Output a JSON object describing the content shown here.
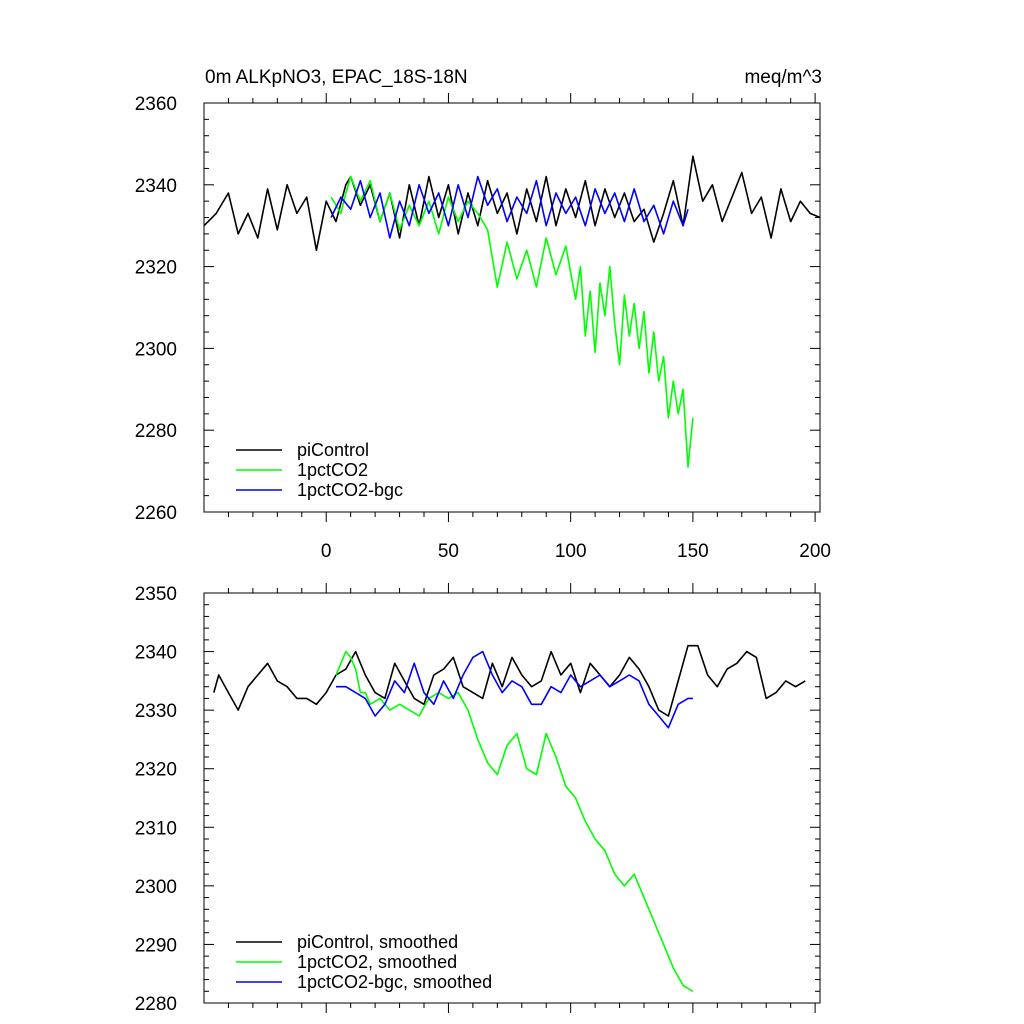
{
  "chart_data": [
    {
      "type": "line",
      "title_left": "0m ALKpNO3, EPAC_18S-18N",
      "title_right": "meq/m^3",
      "xlim": [
        -50,
        202
      ],
      "ylim": [
        2260,
        2360
      ],
      "yticks": [
        2260,
        2280,
        2300,
        2320,
        2340,
        2360
      ],
      "xticks": [
        0,
        50,
        100,
        150,
        200
      ],
      "xtick_labels_shown": true,
      "legend_position": "bottom-left",
      "series": [
        {
          "name": "piControl",
          "color": "#000000",
          "x": [
            -50,
            -45,
            -40,
            -36,
            -32,
            -28,
            -24,
            -20,
            -16,
            -12,
            -8,
            -4,
            0,
            4,
            8,
            10,
            14,
            18,
            22,
            26,
            30,
            34,
            38,
            42,
            46,
            50,
            54,
            58,
            62,
            66,
            70,
            74,
            78,
            82,
            86,
            90,
            94,
            98,
            102,
            106,
            110,
            114,
            118,
            122,
            126,
            130,
            134,
            138,
            142,
            146,
            150,
            154,
            158,
            162,
            166,
            170,
            174,
            178,
            182,
            186,
            190,
            194,
            198,
            202
          ],
          "y": [
            2330,
            2333,
            2338,
            2328,
            2333,
            2327,
            2339,
            2329,
            2340,
            2333,
            2337,
            2324,
            2336,
            2331,
            2340,
            2342,
            2335,
            2340,
            2331,
            2338,
            2327,
            2340,
            2330,
            2342,
            2332,
            2340,
            2328,
            2338,
            2330,
            2341,
            2333,
            2338,
            2328,
            2339,
            2331,
            2342,
            2330,
            2339,
            2332,
            2341,
            2330,
            2339,
            2332,
            2338,
            2331,
            2334,
            2326,
            2333,
            2341,
            2330,
            2347,
            2336,
            2340,
            2331,
            2337,
            2343,
            2333,
            2337,
            2327,
            2339,
            2331,
            2336,
            2333,
            2332
          ]
        },
        {
          "name": "1pctCO2",
          "color": "#00ff00",
          "x": [
            2,
            6,
            8,
            10,
            14,
            18,
            22,
            26,
            30,
            34,
            38,
            42,
            46,
            50,
            54,
            58,
            62,
            66,
            68,
            70,
            74,
            78,
            82,
            86,
            90,
            94,
            98,
            102,
            104,
            106,
            108,
            110,
            112,
            114,
            116,
            118,
            120,
            122,
            124,
            126,
            128,
            130,
            132,
            134,
            136,
            138,
            140,
            142,
            144,
            146,
            148,
            150
          ],
          "y": [
            2337,
            2333,
            2338,
            2342,
            2336,
            2341,
            2331,
            2338,
            2329,
            2335,
            2330,
            2336,
            2328,
            2337,
            2331,
            2336,
            2333,
            2329,
            2322,
            2315,
            2326,
            2317,
            2324,
            2315,
            2327,
            2318,
            2325,
            2312,
            2320,
            2303,
            2314,
            2299,
            2316,
            2308,
            2320,
            2306,
            2296,
            2313,
            2303,
            2311,
            2300,
            2309,
            2294,
            2304,
            2292,
            2298,
            2283,
            2292,
            2284,
            2290,
            2271,
            2283
          ]
        },
        {
          "name": "1pctCO2-bgc",
          "color": "#0000ff",
          "x": [
            2,
            6,
            10,
            14,
            18,
            22,
            26,
            30,
            34,
            38,
            42,
            46,
            50,
            54,
            58,
            62,
            66,
            70,
            74,
            78,
            82,
            86,
            90,
            94,
            98,
            102,
            106,
            110,
            114,
            118,
            122,
            126,
            130,
            134,
            138,
            142,
            146,
            148
          ],
          "y": [
            2332,
            2337,
            2334,
            2341,
            2332,
            2338,
            2327,
            2336,
            2330,
            2340,
            2333,
            2338,
            2330,
            2340,
            2332,
            2342,
            2335,
            2339,
            2331,
            2337,
            2333,
            2341,
            2330,
            2338,
            2333,
            2337,
            2330,
            2339,
            2333,
            2338,
            2331,
            2339,
            2331,
            2335,
            2328,
            2336,
            2330,
            2334
          ]
        }
      ]
    },
    {
      "type": "line",
      "xlim": [
        -50,
        202
      ],
      "ylim": [
        2280,
        2350
      ],
      "yticks": [
        2280,
        2290,
        2300,
        2310,
        2320,
        2330,
        2340,
        2350
      ],
      "xtick_labels_shown": false,
      "legend_position": "bottom-left",
      "series": [
        {
          "name": "piControl, smoothed",
          "color": "#000000",
          "x": [
            -46,
            -44,
            -40,
            -36,
            -32,
            -28,
            -24,
            -20,
            -16,
            -12,
            -8,
            -4,
            0,
            4,
            8,
            12,
            16,
            20,
            24,
            28,
            32,
            36,
            40,
            44,
            48,
            52,
            56,
            60,
            64,
            68,
            72,
            76,
            80,
            84,
            88,
            92,
            96,
            100,
            104,
            108,
            112,
            116,
            120,
            124,
            128,
            132,
            136,
            140,
            144,
            148,
            152,
            156,
            160,
            164,
            168,
            172,
            176,
            180,
            184,
            188,
            192,
            196
          ],
          "y": [
            2333,
            2336,
            2333,
            2330,
            2334,
            2336,
            2338,
            2335,
            2334,
            2332,
            2332,
            2331,
            2333,
            2336,
            2337,
            2340,
            2336,
            2333,
            2332,
            2338,
            2335,
            2332,
            2331,
            2336,
            2337,
            2339,
            2334,
            2333,
            2332,
            2338,
            2334,
            2339,
            2336,
            2334,
            2335,
            2340,
            2336,
            2338,
            2333,
            2338,
            2336,
            2334,
            2336,
            2339,
            2337,
            2334,
            2330,
            2329,
            2335,
            2341,
            2341,
            2336,
            2334,
            2337,
            2338,
            2340,
            2339,
            2332,
            2333,
            2335,
            2334,
            2335
          ]
        },
        {
          "name": "1pctCO2, smoothed",
          "color": "#00ff00",
          "x": [
            4,
            6,
            8,
            10,
            12,
            14,
            16,
            18,
            22,
            26,
            30,
            34,
            38,
            42,
            46,
            50,
            54,
            58,
            62,
            66,
            70,
            74,
            78,
            82,
            86,
            90,
            94,
            98,
            102,
            106,
            110,
            114,
            118,
            122,
            126,
            130,
            134,
            138,
            142,
            146,
            150
          ],
          "y": [
            2336,
            2338,
            2340,
            2339,
            2337,
            2333,
            2333,
            2331,
            2332,
            2330,
            2331,
            2330,
            2329,
            2332,
            2333,
            2332,
            2333,
            2330,
            2325,
            2321,
            2319,
            2324,
            2326,
            2320,
            2319,
            2326,
            2322,
            2317,
            2315,
            2311,
            2308,
            2306,
            2302,
            2300,
            2302,
            2298,
            2294,
            2290,
            2286,
            2283,
            2282
          ]
        },
        {
          "name": "1pctCO2-bgc, smoothed",
          "color": "#0000ff",
          "x": [
            4,
            8,
            12,
            16,
            20,
            24,
            28,
            32,
            36,
            40,
            44,
            48,
            52,
            56,
            60,
            64,
            68,
            72,
            76,
            80,
            84,
            88,
            92,
            96,
            100,
            104,
            108,
            112,
            116,
            120,
            124,
            128,
            132,
            136,
            140,
            144,
            148,
            150
          ],
          "y": [
            2334,
            2334,
            2333,
            2332,
            2329,
            2331,
            2335,
            2333,
            2338,
            2333,
            2331,
            2335,
            2332,
            2336,
            2339,
            2340,
            2336,
            2333,
            2335,
            2334,
            2331,
            2331,
            2334,
            2333,
            2336,
            2334,
            2335,
            2336,
            2334,
            2335,
            2336,
            2335,
            2331,
            2329,
            2327,
            2331,
            2332,
            2332
          ]
        }
      ]
    }
  ]
}
